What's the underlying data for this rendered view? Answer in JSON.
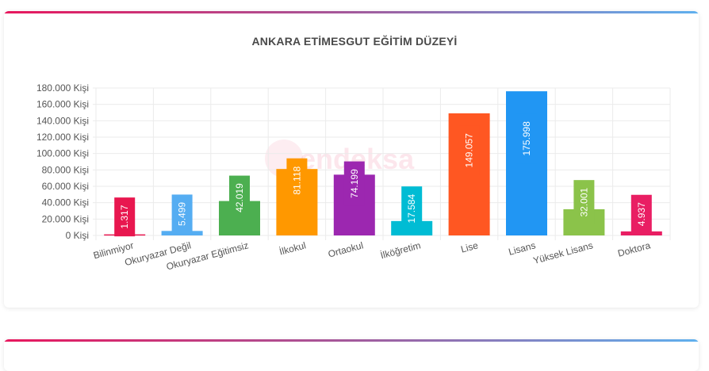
{
  "chart_data": {
    "type": "bar",
    "title": "ANKARA ETİMESGUT EĞİTİM DÜZEYİ",
    "categories": [
      "Bilinmiyor",
      "Okuryazar Değil",
      "Okuryazar Eğitimsiz",
      "İlkokul",
      "Ortaokul",
      "İlköğretim",
      "Lise",
      "Lisans",
      "Yüksek Lisans",
      "Doktora"
    ],
    "values": [
      1317,
      5499,
      42019,
      81118,
      74199,
      17584,
      149057,
      175998,
      32001,
      4937
    ],
    "data_labels": [
      "1.317",
      "5.499",
      "42.019",
      "81.118",
      "74.199",
      "17.584",
      "149.057",
      "175.998",
      "32.001",
      "4.937"
    ],
    "colors": [
      "#e8174f",
      "#55adf2",
      "#4caf50",
      "#ff9800",
      "#9c27b0",
      "#00bcd4",
      "#ff5722",
      "#2196f3",
      "#8bc34a",
      "#e91e63"
    ],
    "ylim": [
      0,
      180000
    ],
    "yticks": [
      "0 Kişi",
      "20.000 Kişi",
      "40.000 Kişi",
      "60.000 Kişi",
      "80.000 Kişi",
      "100.000 Kişi",
      "120.000 Kişi",
      "140.000 Kişi",
      "160.000 Kişi",
      "180.000 Kişi"
    ],
    "grid": true,
    "legend": "none"
  },
  "watermark": "endeksa"
}
